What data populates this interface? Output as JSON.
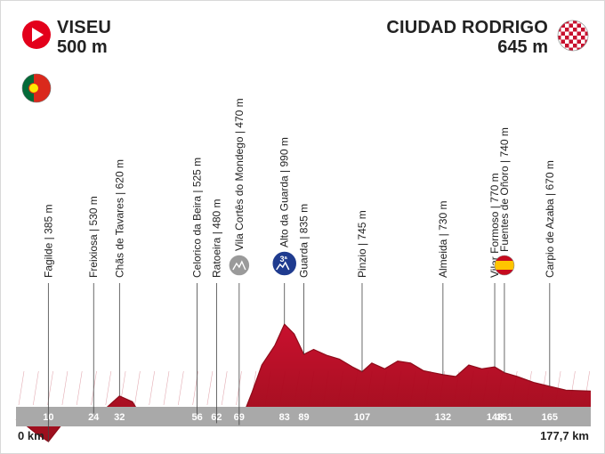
{
  "start": {
    "name": "VISEU",
    "elevation": "500 m",
    "country": "Portugal"
  },
  "finish": {
    "name": "CIUDAD RODRIGO",
    "elevation": "645 m"
  },
  "colors": {
    "profile": "#c8102e",
    "profile_dark": "#9b0f1d",
    "axis_band": "#a9a9a9",
    "start_icon": "#e3001b",
    "climb_badge": "#1f3b8f"
  },
  "chart_data": {
    "type": "area",
    "xlim": [
      0,
      177.7
    ],
    "start_label": "0 km",
    "end_label": "177,7 km",
    "profile": [
      [
        0,
        500
      ],
      [
        3,
        470
      ],
      [
        6,
        430
      ],
      [
        10,
        385
      ],
      [
        14,
        470
      ],
      [
        18,
        510
      ],
      [
        24,
        530
      ],
      [
        28,
        560
      ],
      [
        32,
        620
      ],
      [
        36,
        590
      ],
      [
        40,
        480
      ],
      [
        44,
        500
      ],
      [
        48,
        470
      ],
      [
        52,
        500
      ],
      [
        56,
        525
      ],
      [
        59,
        490
      ],
      [
        62,
        480
      ],
      [
        66,
        470
      ],
      [
        69,
        470
      ],
      [
        73,
        640
      ],
      [
        76,
        780
      ],
      [
        80,
        880
      ],
      [
        83,
        990
      ],
      [
        86,
        940
      ],
      [
        89,
        835
      ],
      [
        92,
        860
      ],
      [
        96,
        830
      ],
      [
        100,
        810
      ],
      [
        104,
        770
      ],
      [
        107,
        745
      ],
      [
        110,
        790
      ],
      [
        114,
        760
      ],
      [
        118,
        800
      ],
      [
        122,
        790
      ],
      [
        126,
        750
      ],
      [
        129,
        740
      ],
      [
        132,
        730
      ],
      [
        136,
        720
      ],
      [
        140,
        780
      ],
      [
        144,
        760
      ],
      [
        148,
        770
      ],
      [
        151,
        740
      ],
      [
        155,
        720
      ],
      [
        160,
        690
      ],
      [
        165,
        670
      ],
      [
        170,
        650
      ],
      [
        177.7,
        645
      ]
    ],
    "tick_labels": [
      10,
      24,
      32,
      56,
      62,
      69,
      83,
      89,
      107,
      132,
      148,
      151,
      165
    ],
    "waypoints": [
      {
        "km": 10,
        "label": "Fagilde | 385 m"
      },
      {
        "km": 24,
        "label": "Freixiosa | 530 m"
      },
      {
        "km": 32,
        "label": "Chãs de Tavares | 620 m"
      },
      {
        "km": 56,
        "label": "Celorico da Beira | 525 m"
      },
      {
        "km": 62,
        "label": "Ratoeira | 480 m"
      },
      {
        "km": 69,
        "label": "Vila Cortês do Mondego | 470 m",
        "badge": "sprint"
      },
      {
        "km": 83,
        "label": "Alto da Guarda | 990 m",
        "badge": "climb",
        "badge_text": "3ª"
      },
      {
        "km": 89,
        "label": "Guarda | 835 m"
      },
      {
        "km": 107,
        "label": "Pinzio | 745 m"
      },
      {
        "km": 132,
        "label": "Almeida | 730 m"
      },
      {
        "km": 148,
        "label": "Vilar Formoso | 770 m"
      },
      {
        "km": 151,
        "label": "Fuentes de Oñoro | 740 m",
        "badge": "spain-flag"
      },
      {
        "km": 165,
        "label": "Carpio de Azaba | 670 m"
      }
    ]
  }
}
